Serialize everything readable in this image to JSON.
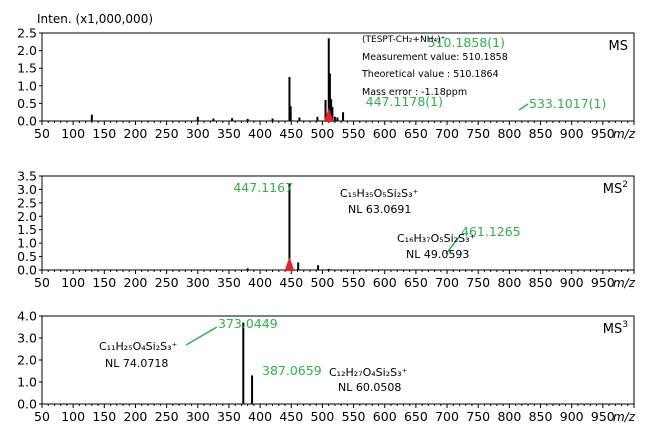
{
  "page": {
    "intensity_unit_label": "Inten. (x1,000,000)",
    "x_unit_label": "m/z"
  },
  "colors": {
    "axis": "#000000",
    "peak": "#000000",
    "peak_label": "#2db34a",
    "marker": "#e8202a"
  },
  "chart_data": [
    {
      "type": "bar",
      "stage_label": "MS",
      "stage_sup": "",
      "xlim": [
        50,
        1000
      ],
      "ylim": [
        0,
        2.5
      ],
      "x_ticks": [
        50,
        100,
        150,
        200,
        250,
        300,
        350,
        400,
        450,
        500,
        550,
        600,
        650,
        700,
        750,
        800,
        850,
        900,
        950
      ],
      "y_ticks": [
        {
          "value": 0.0,
          "label": "0.0"
        },
        {
          "value": 0.5,
          "label": "0.5"
        },
        {
          "value": 1.0,
          "label": "1.0"
        },
        {
          "value": 1.5,
          "label": "1.5"
        },
        {
          "value": 2.0,
          "label": "2.0"
        },
        {
          "value": 2.5,
          "label": "2.5"
        }
      ],
      "peaks": [
        {
          "x": 130,
          "y": 0.18
        },
        {
          "x": 300,
          "y": 0.12
        },
        {
          "x": 325,
          "y": 0.07
        },
        {
          "x": 355,
          "y": 0.08
        },
        {
          "x": 380,
          "y": 0.06
        },
        {
          "x": 420,
          "y": 0.07
        },
        {
          "x": 447.1178,
          "y": 1.25
        },
        {
          "x": 449,
          "y": 0.42
        },
        {
          "x": 463,
          "y": 0.1
        },
        {
          "x": 492,
          "y": 0.12
        },
        {
          "x": 505,
          "y": 0.6
        },
        {
          "x": 510.1858,
          "y": 2.35
        },
        {
          "x": 512,
          "y": 1.35
        },
        {
          "x": 514,
          "y": 0.62
        },
        {
          "x": 516,
          "y": 0.4
        },
        {
          "x": 520,
          "y": 0.12
        },
        {
          "x": 524,
          "y": 0.1
        },
        {
          "x": 533.1017,
          "y": 0.25
        }
      ],
      "peak_labels": [
        {
          "text": "510.1858(1)",
          "x": 510.1858,
          "y": 2.35
        },
        {
          "text": "447.1178(1)",
          "x": 447.1178,
          "y": 1.25
        },
        {
          "text": "533.1017(1)",
          "x": 533.1017,
          "y": 0.25
        }
      ],
      "precursor_x": 510.1858,
      "annotations": [
        "(TESPT-CH₂+NH₄)⁺",
        "Measurement value: 510.1858",
        "Theoretical value   : 510.1864",
        "Mass error             : -1.18ppm"
      ]
    },
    {
      "type": "bar",
      "stage_label": "MS",
      "stage_sup": "2",
      "xlim": [
        50,
        1000
      ],
      "ylim": [
        0,
        3.5
      ],
      "x_ticks": [
        50,
        100,
        150,
        200,
        250,
        300,
        350,
        400,
        450,
        500,
        550,
        600,
        650,
        700,
        750,
        800,
        850,
        900,
        950
      ],
      "y_ticks": [
        {
          "value": 0.0,
          "label": "0.0"
        },
        {
          "value": 0.5,
          "label": "0.5"
        },
        {
          "value": 1.0,
          "label": "1.0"
        },
        {
          "value": 1.5,
          "label": "1.5"
        },
        {
          "value": 2.0,
          "label": "2.0"
        },
        {
          "value": 2.5,
          "label": "2.5"
        },
        {
          "value": 3.0,
          "label": "3.0"
        },
        {
          "value": 3.5,
          "label": "3.5"
        }
      ],
      "peaks": [
        {
          "x": 380,
          "y": 0.06
        },
        {
          "x": 447.1167,
          "y": 3.2
        },
        {
          "x": 461.1265,
          "y": 0.28
        },
        {
          "x": 493,
          "y": 0.18
        },
        {
          "x": 510,
          "y": 0.04
        }
      ],
      "peak_labels": [
        {
          "text": "447.1167",
          "x": 447.1167,
          "y": 3.2
        },
        {
          "text": "461.1265",
          "x": 461.1265,
          "y": 0.28
        }
      ],
      "precursor_x": 447.1167,
      "annotations": [
        "C₁₅H₃₅O₅Si₂S₃⁺",
        "NL 63.0691",
        "C₁₆H₃₇O₅Si₂S₃⁺",
        "NL 49.0593"
      ]
    },
    {
      "type": "bar",
      "stage_label": "MS",
      "stage_sup": "3",
      "xlim": [
        50,
        1000
      ],
      "ylim": [
        0,
        4.0
      ],
      "x_ticks": [
        50,
        100,
        150,
        200,
        250,
        300,
        350,
        400,
        450,
        500,
        550,
        600,
        650,
        700,
        750,
        800,
        850,
        900,
        950
      ],
      "y_ticks": [
        {
          "value": 0.0,
          "label": "0.0"
        },
        {
          "value": 1.0,
          "label": "1.0"
        },
        {
          "value": 2.0,
          "label": "2.0"
        },
        {
          "value": 3.0,
          "label": "3.0"
        },
        {
          "value": 4.0,
          "label": "4.0"
        }
      ],
      "peaks": [
        {
          "x": 373.0449,
          "y": 3.7
        },
        {
          "x": 387.0659,
          "y": 1.3
        }
      ],
      "peak_labels": [
        {
          "text": "373.0449",
          "x": 373.0449,
          "y": 3.7
        },
        {
          "text": "387.0659",
          "x": 387.0659,
          "y": 1.3
        }
      ],
      "precursor_x": null,
      "annotations": [
        "C₁₁H₂₅O₄Si₂S₃⁺",
        "NL 74.0718",
        "C₁₂H₂₇O₄Si₂S₃⁺",
        "NL 60.0508"
      ]
    }
  ]
}
